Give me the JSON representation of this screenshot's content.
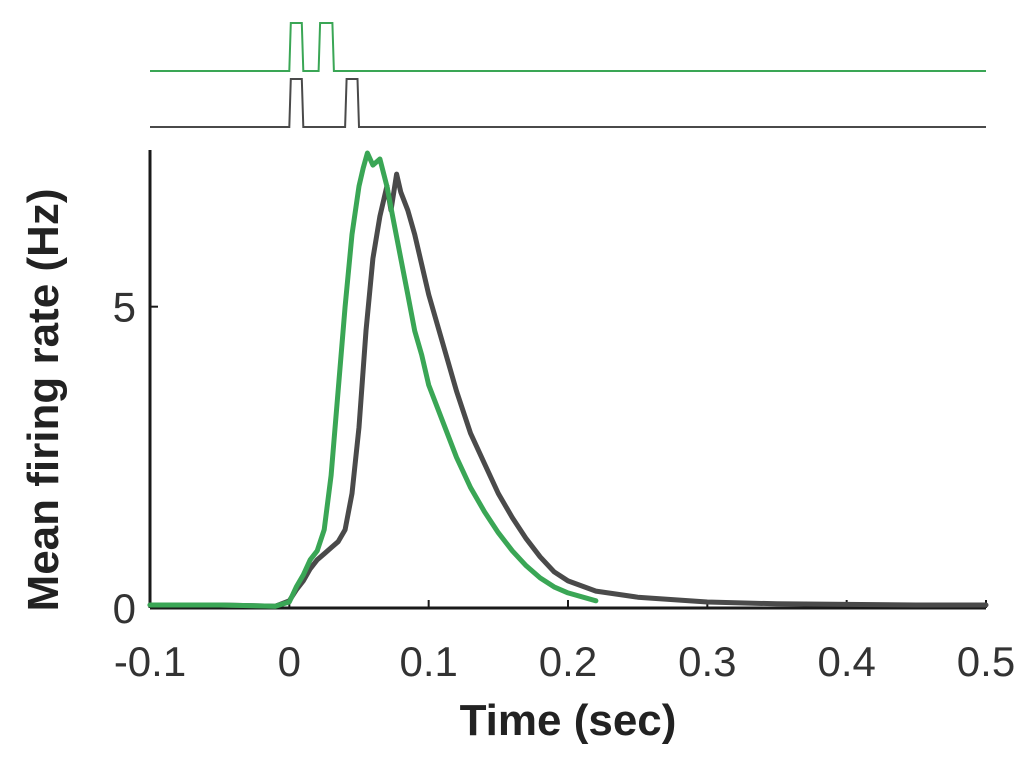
{
  "chart_data": {
    "type": "line",
    "xlabel": "Time (sec)",
    "ylabel": "Mean firing rate (Hz)",
    "xlim": [
      -0.1,
      0.5
    ],
    "ylim": [
      0,
      7.6
    ],
    "x_ticks": [
      -0.1,
      0,
      0.1,
      0.2,
      0.3,
      0.4,
      0.5
    ],
    "x_tick_labels": [
      "-0.1",
      "0",
      "0.1",
      "0.2",
      "0.3",
      "0.4",
      "0.5"
    ],
    "y_ticks": [
      0,
      5
    ],
    "y_tick_labels": [
      "0",
      "5"
    ],
    "grid": false,
    "legend": "none",
    "series": [
      {
        "color": "#3aa655",
        "points": [
          [
            -0.1,
            0.05
          ],
          [
            -0.05,
            0.05
          ],
          [
            -0.01,
            0.03
          ],
          [
            0.0,
            0.1
          ],
          [
            0.005,
            0.35
          ],
          [
            0.01,
            0.55
          ],
          [
            0.015,
            0.8
          ],
          [
            0.02,
            0.95
          ],
          [
            0.025,
            1.3
          ],
          [
            0.03,
            2.2
          ],
          [
            0.035,
            3.6
          ],
          [
            0.04,
            5.0
          ],
          [
            0.045,
            6.2
          ],
          [
            0.05,
            7.0
          ],
          [
            0.053,
            7.3
          ],
          [
            0.056,
            7.55
          ],
          [
            0.06,
            7.35
          ],
          [
            0.065,
            7.45
          ],
          [
            0.07,
            7.0
          ],
          [
            0.075,
            6.4
          ],
          [
            0.08,
            5.8
          ],
          [
            0.085,
            5.2
          ],
          [
            0.09,
            4.6
          ],
          [
            0.095,
            4.2
          ],
          [
            0.1,
            3.7
          ],
          [
            0.11,
            3.1
          ],
          [
            0.12,
            2.5
          ],
          [
            0.13,
            2.0
          ],
          [
            0.14,
            1.6
          ],
          [
            0.15,
            1.25
          ],
          [
            0.16,
            0.95
          ],
          [
            0.17,
            0.7
          ],
          [
            0.18,
            0.5
          ],
          [
            0.19,
            0.35
          ],
          [
            0.2,
            0.25
          ],
          [
            0.22,
            0.12
          ]
        ],
        "stimulus_pulses": [
          [
            0.0,
            0.01
          ],
          [
            0.021,
            0.032
          ]
        ]
      },
      {
        "color": "#4a4a4a",
        "points": [
          [
            -0.1,
            0.05
          ],
          [
            -0.05,
            0.05
          ],
          [
            -0.01,
            0.03
          ],
          [
            0.0,
            0.12
          ],
          [
            0.005,
            0.3
          ],
          [
            0.01,
            0.45
          ],
          [
            0.015,
            0.65
          ],
          [
            0.02,
            0.8
          ],
          [
            0.025,
            0.9
          ],
          [
            0.03,
            1.0
          ],
          [
            0.035,
            1.1
          ],
          [
            0.04,
            1.3
          ],
          [
            0.045,
            1.9
          ],
          [
            0.05,
            3.0
          ],
          [
            0.055,
            4.6
          ],
          [
            0.06,
            5.8
          ],
          [
            0.065,
            6.5
          ],
          [
            0.07,
            7.0
          ],
          [
            0.073,
            6.6
          ],
          [
            0.077,
            7.2
          ],
          [
            0.08,
            6.9
          ],
          [
            0.085,
            6.6
          ],
          [
            0.09,
            6.2
          ],
          [
            0.095,
            5.7
          ],
          [
            0.1,
            5.2
          ],
          [
            0.11,
            4.4
          ],
          [
            0.12,
            3.6
          ],
          [
            0.13,
            2.9
          ],
          [
            0.14,
            2.4
          ],
          [
            0.15,
            1.9
          ],
          [
            0.16,
            1.5
          ],
          [
            0.17,
            1.15
          ],
          [
            0.18,
            0.85
          ],
          [
            0.19,
            0.6
          ],
          [
            0.2,
            0.45
          ],
          [
            0.22,
            0.28
          ],
          [
            0.25,
            0.18
          ],
          [
            0.3,
            0.1
          ],
          [
            0.35,
            0.07
          ],
          [
            0.4,
            0.06
          ],
          [
            0.45,
            0.05
          ],
          [
            0.5,
            0.05
          ]
        ],
        "stimulus_pulses": [
          [
            0.0,
            0.01
          ],
          [
            0.04,
            0.05
          ]
        ]
      }
    ]
  }
}
